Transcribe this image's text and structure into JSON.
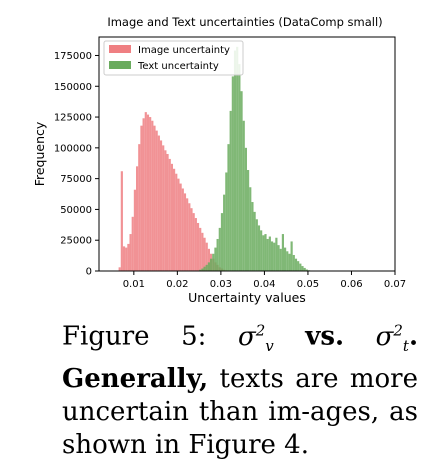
{
  "chart_data": {
    "type": "histogram",
    "title": "Image and Text uncertainties (DataComp small)",
    "xlabel": "Uncertainty values",
    "ylabel": "Frequency",
    "xlim": [
      0.002,
      0.07
    ],
    "ylim": [
      0,
      190000
    ],
    "xticks": [
      0.01,
      0.02,
      0.03,
      0.04,
      0.05,
      0.06,
      0.07
    ],
    "xtick_labels": [
      "0.01",
      "0.02",
      "0.03",
      "0.04",
      "0.05",
      "0.06",
      "0.07"
    ],
    "yticks": [
      0,
      25000,
      50000,
      75000,
      100000,
      125000,
      150000,
      175000
    ],
    "ytick_labels": [
      "0",
      "25000",
      "50000",
      "75000",
      "100000",
      "125000",
      "150000",
      "175000"
    ],
    "grid": false,
    "legend_position": "top-left",
    "series": [
      {
        "name": "Image uncertainty",
        "color": "#ef7f82",
        "bin_width": 0.0005,
        "x_start": 0.0065,
        "values": [
          3000,
          81000,
          20000,
          19000,
          22000,
          30000,
          44000,
          66000,
          85000,
          103000,
          118000,
          124000,
          129000,
          127000,
          125000,
          122000,
          118000,
          114000,
          110000,
          106000,
          102000,
          98000,
          95000,
          91000,
          87000,
          83000,
          79000,
          75000,
          71000,
          67000,
          63000,
          59000,
          55000,
          51000,
          47000,
          43000,
          39000,
          35000,
          31000,
          27000,
          23000,
          18000,
          14000,
          10000,
          7000,
          5000,
          3000,
          2000,
          1000,
          500
        ]
      },
      {
        "name": "Text uncertainty",
        "color": "#6aab5e",
        "bin_width": 0.0005,
        "x_start": 0.025,
        "values": [
          1000,
          2000,
          3500,
          5000,
          7000,
          10000,
          14000,
          19000,
          26000,
          35000,
          47000,
          62000,
          80000,
          103000,
          130000,
          158000,
          179000,
          182000,
          168000,
          146000,
          122000,
          100000,
          82000,
          68000,
          56000,
          48000,
          42000,
          37000,
          33000,
          29000,
          30000,
          26000,
          28000,
          24000,
          23000,
          27000,
          21000,
          18000,
          30000,
          19000,
          16000,
          14000,
          24000,
          13000,
          10000,
          8000,
          6000,
          4000,
          2500,
          1200,
          600
        ]
      }
    ]
  },
  "caption": {
    "figure_label": "Figure 5:",
    "sigma": "σ",
    "sup_v": "2",
    "sub_v": "v",
    "vs": "vs.",
    "sup_t": "2",
    "sub_t": "t",
    "after_math": ". Generally,",
    "body": "texts are more uncertain than im-ages, as shown in Figure 4."
  }
}
